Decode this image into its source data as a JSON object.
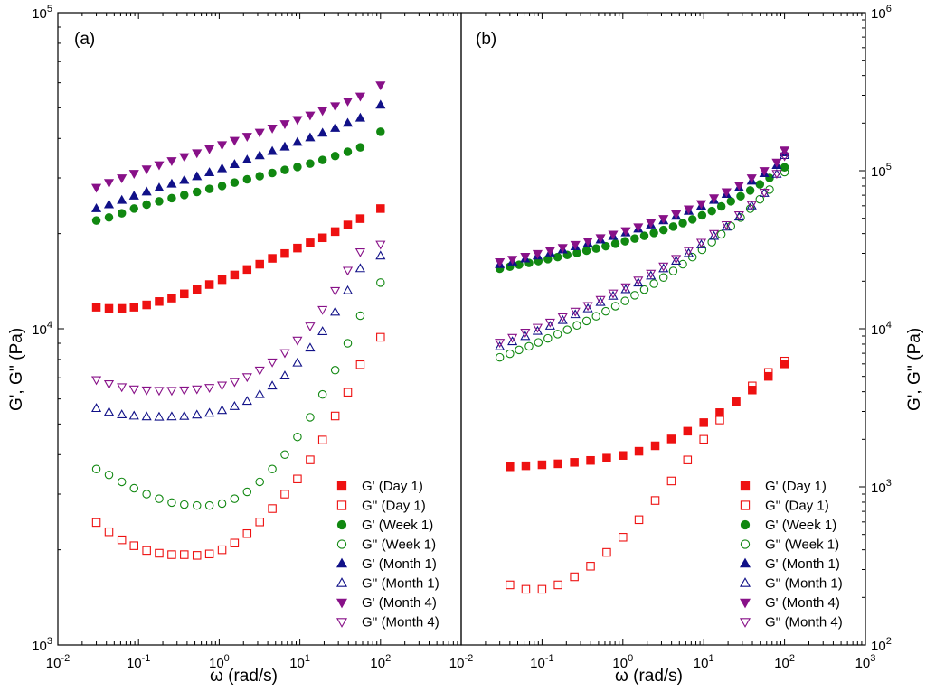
{
  "figure": {
    "ylabel_left": "G', G'' (Pa)",
    "ylabel_right": "G', G'' (Pa)",
    "xlabel": "ω (rad/s)"
  },
  "chart_data": [
    {
      "type": "scatter",
      "panel_label": "(a)",
      "xscale": "log",
      "yscale": "log",
      "xlim": [
        0.01,
        1000
      ],
      "ylim": [
        1000,
        100000
      ],
      "xlabel": "ω (rad/s)",
      "ylabel": "G', G'' (Pa)",
      "x_ticks": [
        "10-2",
        "10-1",
        "100",
        "101",
        "102"
      ],
      "y_ticks": [
        "103",
        "104",
        "105"
      ],
      "legend_position": "bottom-right",
      "series": [
        {
          "name": "G' (Day 1)",
          "marker": "square",
          "filled": true,
          "color": "#ee1111",
          "x": [
            0.03,
            0.043,
            0.062,
            0.088,
            0.126,
            0.18,
            0.258,
            0.369,
            0.529,
            0.757,
            1.085,
            1.55,
            2.22,
            3.18,
            4.55,
            6.51,
            9.33,
            13.4,
            19.1,
            27.4,
            39.2,
            56.1,
            100.0
          ],
          "y": [
            11700,
            11600,
            11600,
            11700,
            11900,
            12200,
            12500,
            12900,
            13300,
            13800,
            14300,
            14800,
            15400,
            16000,
            16700,
            17300,
            18000,
            18700,
            19400,
            20300,
            21300,
            22300,
            24000
          ]
        },
        {
          "name": "G'' (Day 1)",
          "marker": "square",
          "filled": false,
          "color": "#ee1111",
          "x": [
            0.03,
            0.043,
            0.062,
            0.088,
            0.126,
            0.18,
            0.258,
            0.369,
            0.529,
            0.757,
            1.085,
            1.55,
            2.22,
            3.18,
            4.55,
            6.51,
            9.33,
            13.4,
            19.1,
            27.4,
            39.2,
            56.1,
            100.0
          ],
          "y": [
            2440,
            2280,
            2150,
            2060,
            1990,
            1950,
            1930,
            1930,
            1920,
            1940,
            2000,
            2100,
            2250,
            2450,
            2700,
            3000,
            3350,
            3850,
            4450,
            5300,
            6300,
            7700,
            9400
          ]
        },
        {
          "name": "G' (Week 1)",
          "marker": "circle",
          "filled": true,
          "color": "#118811",
          "x": [
            0.03,
            0.043,
            0.062,
            0.088,
            0.126,
            0.18,
            0.258,
            0.369,
            0.529,
            0.757,
            1.085,
            1.55,
            2.22,
            3.18,
            4.55,
            6.51,
            9.33,
            13.4,
            19.1,
            27.4,
            39.2,
            56.1,
            100.0
          ],
          "y": [
            22000,
            22500,
            23200,
            24000,
            24700,
            25300,
            25900,
            26500,
            27100,
            27700,
            28300,
            29000,
            29700,
            30400,
            31100,
            31800,
            32500,
            33300,
            34200,
            35200,
            36300,
            37500,
            42000
          ]
        },
        {
          "name": "G'' (Week 1)",
          "marker": "circle",
          "filled": false,
          "color": "#118811",
          "x": [
            0.03,
            0.043,
            0.062,
            0.088,
            0.126,
            0.18,
            0.258,
            0.369,
            0.529,
            0.757,
            1.085,
            1.55,
            2.22,
            3.18,
            4.55,
            6.51,
            9.33,
            13.4,
            19.1,
            27.4,
            39.2,
            56.1,
            100.0
          ],
          "y": [
            3600,
            3450,
            3280,
            3130,
            3000,
            2900,
            2820,
            2780,
            2760,
            2760,
            2800,
            2900,
            3050,
            3280,
            3600,
            4000,
            4550,
            5250,
            6200,
            7400,
            9000,
            11000,
            14000
          ]
        },
        {
          "name": "G' (Month 1)",
          "marker": "triangle-up",
          "filled": true,
          "color": "#111188",
          "x": [
            0.03,
            0.043,
            0.062,
            0.088,
            0.126,
            0.18,
            0.258,
            0.369,
            0.529,
            0.757,
            1.085,
            1.55,
            2.22,
            3.18,
            4.55,
            6.51,
            9.33,
            13.4,
            19.1,
            27.4,
            39.2,
            56.1,
            100.0
          ],
          "y": [
            24000,
            24700,
            25500,
            26300,
            27100,
            27900,
            28700,
            29500,
            30300,
            31200,
            32100,
            33100,
            34200,
            35300,
            36400,
            37600,
            38900,
            40200,
            41600,
            43100,
            44700,
            46400,
            51000
          ]
        },
        {
          "name": "G'' (Month 1)",
          "marker": "triangle-up",
          "filled": false,
          "color": "#111188",
          "x": [
            0.03,
            0.043,
            0.062,
            0.088,
            0.126,
            0.18,
            0.258,
            0.369,
            0.529,
            0.757,
            1.085,
            1.55,
            2.22,
            3.18,
            4.55,
            6.51,
            9.33,
            13.4,
            19.1,
            27.4,
            39.2,
            56.1,
            100.0
          ],
          "y": [
            5600,
            5450,
            5350,
            5300,
            5270,
            5260,
            5270,
            5290,
            5340,
            5410,
            5520,
            5680,
            5900,
            6200,
            6600,
            7100,
            7800,
            8700,
            9800,
            11300,
            13200,
            15500,
            17000
          ]
        },
        {
          "name": "G' (Month 4)",
          "marker": "triangle-down",
          "filled": true,
          "color": "#881188",
          "x": [
            0.03,
            0.043,
            0.062,
            0.088,
            0.126,
            0.18,
            0.258,
            0.369,
            0.529,
            0.757,
            1.085,
            1.55,
            2.22,
            3.18,
            4.55,
            6.51,
            9.33,
            13.4,
            19.1,
            27.4,
            39.2,
            56.1,
            100.0
          ],
          "y": [
            28000,
            29000,
            30000,
            31000,
            32000,
            33000,
            34000,
            35000,
            36000,
            37100,
            38200,
            39400,
            40600,
            41800,
            43100,
            44500,
            45900,
            47400,
            49000,
            50700,
            52500,
            54400,
            59000
          ]
        },
        {
          "name": "G'' (Month 4)",
          "marker": "triangle-down",
          "filled": false,
          "color": "#881188",
          "x": [
            0.03,
            0.043,
            0.062,
            0.088,
            0.126,
            0.18,
            0.258,
            0.369,
            0.529,
            0.757,
            1.085,
            1.55,
            2.22,
            3.18,
            4.55,
            6.51,
            9.33,
            13.4,
            19.1,
            27.4,
            39.2,
            56.1,
            100.0
          ],
          "y": [
            6900,
            6700,
            6550,
            6450,
            6400,
            6380,
            6380,
            6400,
            6450,
            6520,
            6630,
            6800,
            7050,
            7400,
            7850,
            8400,
            9200,
            10200,
            11500,
            13200,
            15300,
            17500,
            18500
          ]
        }
      ]
    },
    {
      "type": "scatter",
      "panel_label": "(b)",
      "xscale": "log",
      "yscale": "log",
      "xlim": [
        0.01,
        1000
      ],
      "ylim": [
        100,
        1000000
      ],
      "xlabel": "ω (rad/s)",
      "ylabel": "G', G'' (Pa)",
      "x_ticks": [
        "10-2",
        "10-1",
        "100",
        "101",
        "102",
        "103"
      ],
      "y_ticks": [
        "102",
        "103",
        "104",
        "105",
        "106"
      ],
      "legend_position": "bottom-right",
      "series": [
        {
          "name": "G' (Day 1)",
          "marker": "square",
          "filled": true,
          "color": "#ee1111",
          "x": [
            0.04,
            0.063,
            0.1,
            0.158,
            0.251,
            0.398,
            0.631,
            1.0,
            1.58,
            2.51,
            3.98,
            6.31,
            10.0,
            15.8,
            25.1,
            39.8,
            63.1,
            100.0
          ],
          "y": [
            1340,
            1360,
            1380,
            1400,
            1430,
            1470,
            1520,
            1580,
            1680,
            1820,
            2010,
            2250,
            2550,
            2950,
            3450,
            4100,
            5000,
            6000
          ]
        },
        {
          "name": "G'' (Day 1)",
          "marker": "square",
          "filled": false,
          "color": "#ee1111",
          "x": [
            0.04,
            0.063,
            0.1,
            0.158,
            0.251,
            0.398,
            0.631,
            1.0,
            1.58,
            2.51,
            3.98,
            6.31,
            10.0,
            15.8,
            25.1,
            39.8,
            63.1,
            100.0
          ],
          "y": [
            240,
            225,
            225,
            240,
            270,
            315,
            385,
            480,
            620,
            820,
            1090,
            1480,
            2000,
            2650,
            3450,
            4350,
            5300,
            6250
          ]
        },
        {
          "name": "G' (Week 1)",
          "marker": "circle",
          "filled": true,
          "color": "#118811",
          "x": [
            0.03,
            0.04,
            0.052,
            0.069,
            0.09,
            0.118,
            0.156,
            0.205,
            0.27,
            0.355,
            0.467,
            0.614,
            0.808,
            1.063,
            1.4,
            1.84,
            2.42,
            3.18,
            4.19,
            5.51,
            7.25,
            9.54,
            12.6,
            16.5,
            21.7,
            28.6,
            37.6,
            49.5,
            65.2,
            100.0
          ],
          "y": [
            24000,
            24700,
            25400,
            26100,
            26800,
            27600,
            28400,
            29300,
            30200,
            31200,
            32200,
            33300,
            34500,
            35800,
            37200,
            38700,
            40400,
            42200,
            44300,
            46600,
            49200,
            52200,
            55600,
            59500,
            64000,
            69000,
            75000,
            82000,
            90000,
            105000
          ]
        },
        {
          "name": "G'' (Week 1)",
          "marker": "circle",
          "filled": false,
          "color": "#118811",
          "x": [
            0.03,
            0.04,
            0.052,
            0.069,
            0.09,
            0.118,
            0.156,
            0.205,
            0.27,
            0.355,
            0.467,
            0.614,
            0.808,
            1.063,
            1.4,
            1.84,
            2.42,
            3.18,
            4.19,
            5.51,
            7.25,
            9.54,
            12.6,
            16.5,
            21.7,
            28.6,
            37.6,
            49.5,
            65.2,
            100.0
          ],
          "y": [
            6600,
            6950,
            7350,
            7750,
            8200,
            8700,
            9250,
            9850,
            10500,
            11200,
            12000,
            12900,
            13900,
            15000,
            16300,
            17700,
            19300,
            21100,
            23200,
            25600,
            28400,
            31600,
            35300,
            39600,
            44600,
            50500,
            57500,
            66000,
            76000,
            98000
          ]
        },
        {
          "name": "G' (Month 1)",
          "marker": "triangle-up",
          "filled": true,
          "color": "#111188",
          "x": [
            0.03,
            0.043,
            0.062,
            0.088,
            0.126,
            0.18,
            0.258,
            0.369,
            0.529,
            0.757,
            1.085,
            1.55,
            2.22,
            3.18,
            4.55,
            6.51,
            9.33,
            13.4,
            19.1,
            27.4,
            39.2,
            56.1,
            80.0,
            100.0
          ],
          "y": [
            25500,
            26500,
            27700,
            28900,
            30200,
            31600,
            33100,
            34700,
            36500,
            38400,
            40500,
            42800,
            45400,
            48300,
            51600,
            55400,
            59800,
            65000,
            71000,
            78000,
            86000,
            96000,
            108000,
            130000
          ]
        },
        {
          "name": "G'' (Month 1)",
          "marker": "triangle-up",
          "filled": false,
          "color": "#111188",
          "x": [
            0.03,
            0.043,
            0.062,
            0.088,
            0.126,
            0.18,
            0.258,
            0.369,
            0.529,
            0.757,
            1.085,
            1.55,
            2.22,
            3.18,
            4.55,
            6.51,
            9.33,
            13.4,
            19.1,
            27.4,
            39.2,
            56.1,
            80.0,
            100.0
          ],
          "y": [
            7700,
            8300,
            8950,
            9650,
            10400,
            11300,
            12300,
            13400,
            14700,
            16100,
            17700,
            19500,
            21600,
            24000,
            26800,
            30000,
            34000,
            38500,
            44000,
            51000,
            60000,
            72000,
            95000,
            125000
          ]
        },
        {
          "name": "G' (Month 4)",
          "marker": "triangle-down",
          "filled": true,
          "color": "#881188",
          "x": [
            0.03,
            0.043,
            0.062,
            0.088,
            0.126,
            0.18,
            0.258,
            0.369,
            0.529,
            0.757,
            1.085,
            1.55,
            2.22,
            3.18,
            4.55,
            6.51,
            9.33,
            13.4,
            19.1,
            27.4,
            39.2,
            56.1,
            80.0,
            100.0
          ],
          "y": [
            26500,
            27500,
            28700,
            29900,
            31200,
            32600,
            34100,
            35800,
            37600,
            39600,
            41700,
            44100,
            46800,
            49800,
            53200,
            57200,
            61800,
            67200,
            73500,
            81000,
            90000,
            100000,
            113000,
            135000
          ]
        },
        {
          "name": "G'' (Month 4)",
          "marker": "triangle-down",
          "filled": false,
          "color": "#881188",
          "x": [
            0.03,
            0.043,
            0.062,
            0.088,
            0.126,
            0.18,
            0.258,
            0.369,
            0.529,
            0.757,
            1.085,
            1.55,
            2.22,
            3.18,
            4.55,
            6.51,
            9.33,
            13.4,
            19.1,
            27.4,
            39.2,
            56.1,
            80.0,
            100.0
          ],
          "y": [
            8200,
            8800,
            9500,
            10200,
            11000,
            11900,
            12900,
            14000,
            15300,
            16800,
            18400,
            20300,
            22400,
            24900,
            27800,
            31200,
            35200,
            40000,
            45500,
            52500,
            61000,
            73000,
            96000,
            124000
          ]
        }
      ]
    }
  ]
}
